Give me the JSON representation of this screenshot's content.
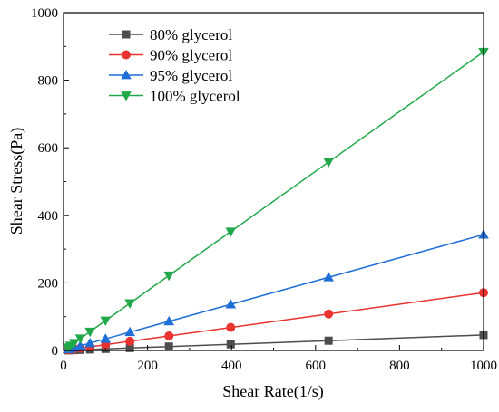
{
  "chart_data": {
    "type": "line",
    "title": "",
    "xlabel": "Shear Rate(1/s)",
    "ylabel": "Shear Stress(Pa)",
    "xlim": [
      0,
      1000
    ],
    "ylim": [
      0,
      1000
    ],
    "xticks": [
      0,
      200,
      400,
      600,
      800,
      1000
    ],
    "yticks": [
      0,
      200,
      400,
      600,
      800,
      1000
    ],
    "grid": false,
    "legend_position": "top-left",
    "x": [
      10,
      16,
      25,
      40,
      63,
      100,
      158,
      251,
      398,
      631,
      1000
    ],
    "series": [
      {
        "name": "80% glycerol",
        "color": "#4d4d4d",
        "marker": "square",
        "values": [
          0.5,
          0.7,
          1.1,
          1.8,
          2.9,
          4.6,
          7.3,
          11.5,
          18.2,
          28.9,
          45.8
        ]
      },
      {
        "name": "90% glycerol",
        "color": "#e8332f",
        "marker": "circle",
        "values": [
          1.7,
          2.7,
          4.3,
          6.8,
          10.8,
          17.1,
          27.0,
          42.9,
          68.0,
          107.9,
          171.0
        ]
      },
      {
        "name": "95% glycerol",
        "color": "#1f6fd6",
        "marker": "triangle-up",
        "values": [
          3.4,
          5.5,
          8.6,
          13.7,
          21.6,
          34.3,
          54.2,
          86.1,
          136.5,
          216.4,
          343.0
        ]
      },
      {
        "name": "100% glycerol",
        "color": "#21a84a",
        "marker": "triangle-down",
        "values": [
          8.8,
          14.1,
          22.1,
          35.4,
          55.7,
          88.4,
          139.7,
          221.9,
          351.8,
          557.8,
          884.0
        ]
      }
    ]
  }
}
